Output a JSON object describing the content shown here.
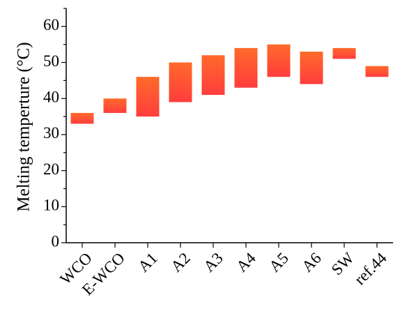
{
  "chart_data": {
    "type": "floating-bar",
    "ylabel": "Melting temperture (°C)",
    "xlabel": "",
    "ylim": [
      0,
      65
    ],
    "yticks": [
      0,
      10,
      20,
      30,
      40,
      50,
      60
    ],
    "categories": [
      "WCO",
      "E-WCO",
      "A1",
      "A2",
      "A3",
      "A4",
      "A5",
      "A6",
      "SW",
      "ref.44"
    ],
    "ranges": [
      [
        33,
        36
      ],
      [
        36,
        40
      ],
      [
        35,
        46
      ],
      [
        39,
        50
      ],
      [
        41,
        52
      ],
      [
        43,
        54
      ],
      [
        46,
        55
      ],
      [
        44,
        53
      ],
      [
        51,
        54
      ],
      [
        46,
        49
      ]
    ],
    "grid": false,
    "colors": {
      "bar_top": "#ff6a2a",
      "bar_bottom": "#ff3d3d"
    }
  }
}
